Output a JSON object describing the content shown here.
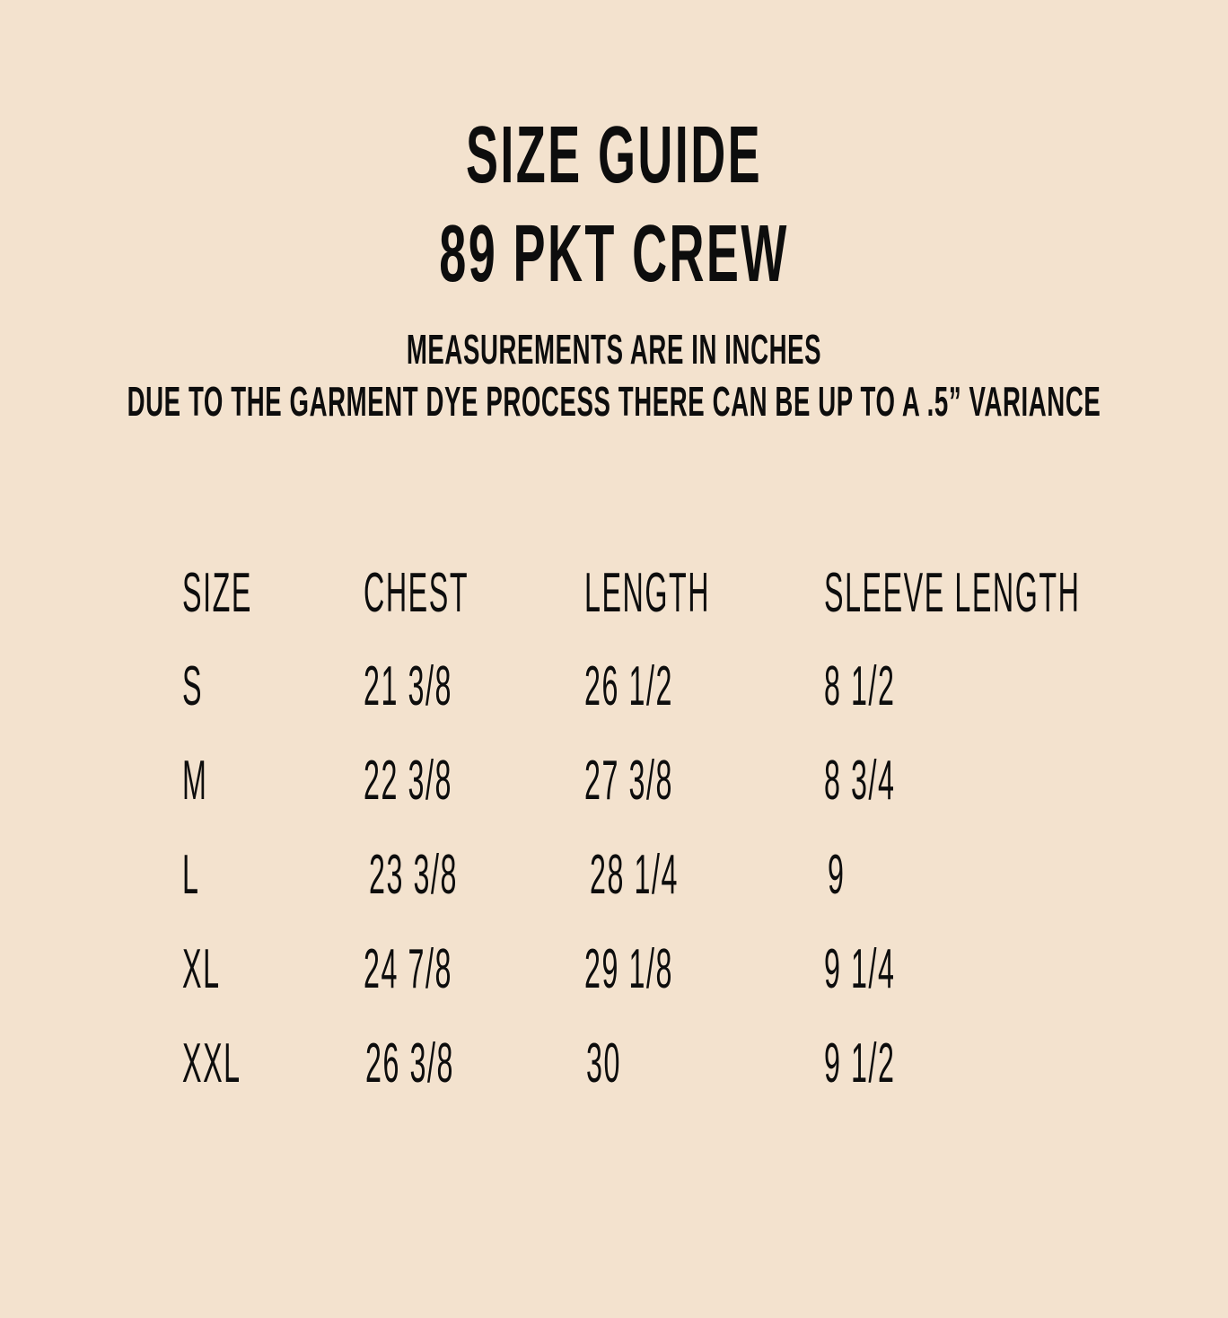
{
  "title": "SIZE GUIDE",
  "product": "89 PKT CREW",
  "notes": [
    "MEASUREMENTS ARE IN INCHES",
    "DUE TO THE GARMENT DYE PROCESS THERE CAN BE UP TO A .5” VARIANCE"
  ],
  "table": {
    "headers": [
      "SIZE",
      "CHEST",
      "LENGTH",
      "SLEEVE LENGTH"
    ],
    "rows": [
      [
        "S",
        "21 3/8",
        "26 1/2",
        "8 1/2"
      ],
      [
        "M",
        "22 3/8",
        "27 3/8",
        "8 3/4"
      ],
      [
        "L",
        "23 3/8",
        "28 1/4",
        "9"
      ],
      [
        "XL",
        "24 7/8",
        "29 1/8",
        "9 1/4"
      ],
      [
        "XXL",
        "26 3/8",
        "30",
        "9 1/2"
      ]
    ]
  }
}
